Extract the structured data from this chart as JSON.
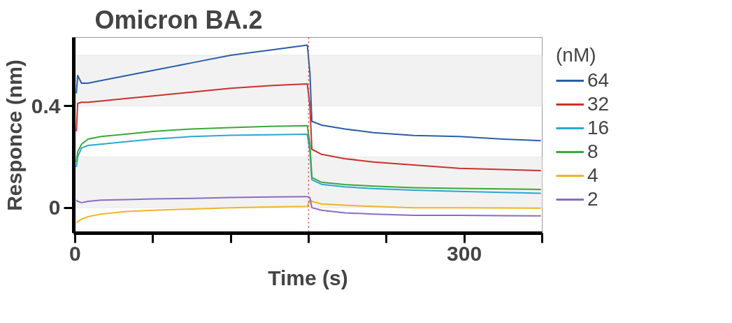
{
  "chart_data": {
    "type": "line",
    "title": "Omicron BA.2",
    "xlabel": "Time (s)",
    "ylabel": "Responce (nm)",
    "legend_title": "(nM)",
    "x": [
      1,
      2,
      5,
      10,
      20,
      40,
      60,
      90,
      120,
      150,
      179,
      181,
      182.5,
      190,
      208,
      230,
      261,
      296,
      330,
      359
    ],
    "series": [
      {
        "name": "64",
        "color": "#2a5ea8",
        "values": [
          0.45,
          0.52,
          0.49,
          0.49,
          0.5,
          0.52,
          0.54,
          0.57,
          0.6,
          0.62,
          0.64,
          0.53,
          0.34,
          0.325,
          0.31,
          0.295,
          0.284,
          0.28,
          0.27,
          0.264
        ]
      },
      {
        "name": "32",
        "color": "#c8322d",
        "values": [
          0.3,
          0.41,
          0.415,
          0.415,
          0.42,
          0.43,
          0.44,
          0.455,
          0.47,
          0.48,
          0.487,
          0.4,
          0.23,
          0.21,
          0.193,
          0.18,
          0.168,
          0.155,
          0.15,
          0.146
        ]
      },
      {
        "name": "16",
        "color": "#27a9d6",
        "values": [
          0.16,
          0.2,
          0.235,
          0.245,
          0.25,
          0.26,
          0.27,
          0.28,
          0.285,
          0.287,
          0.289,
          0.22,
          0.11,
          0.092,
          0.082,
          0.075,
          0.069,
          0.064,
          0.06,
          0.057
        ]
      },
      {
        "name": "8",
        "color": "#3aa83a",
        "values": [
          0.18,
          0.22,
          0.25,
          0.27,
          0.28,
          0.29,
          0.3,
          0.31,
          0.315,
          0.32,
          0.323,
          0.25,
          0.119,
          0.1,
          0.091,
          0.085,
          0.079,
          0.076,
          0.074,
          0.072
        ]
      },
      {
        "name": "4",
        "color": "#f0b429",
        "values": [
          -0.06,
          -0.055,
          -0.045,
          -0.035,
          -0.025,
          -0.015,
          -0.01,
          -0.005,
          0,
          0.003,
          0.005,
          0.03,
          0.025,
          0.015,
          0.01,
          0.005,
          0,
          0,
          -0.001,
          -0.002
        ]
      },
      {
        "name": "2",
        "color": "#8a6cc0",
        "values": [
          0.03,
          0.025,
          0.02,
          0.025,
          0.03,
          0.032,
          0.035,
          0.037,
          0.04,
          0.042,
          0.044,
          0.04,
          0,
          -0.01,
          -0.02,
          -0.025,
          -0.03,
          -0.03,
          -0.031,
          -0.032
        ]
      }
    ],
    "xlim": [
      -1,
      360
    ],
    "ylim": [
      -0.1,
      0.67
    ],
    "xticks": [
      0,
      {
        "value": 60,
        "label": null
      },
      {
        "value": 120,
        "label": null
      },
      {
        "value": 180,
        "label": null
      },
      {
        "value": 240,
        "label": null
      },
      300,
      {
        "value": 360,
        "label": null
      }
    ],
    "yticks": [
      0,
      0.4
    ],
    "ref_lines": [
      {
        "axis": "x",
        "value": 180,
        "label": null,
        "color": "#d04040",
        "line_style": "dotted"
      }
    ],
    "bands": [
      {
        "axis": "y",
        "from": 0.4,
        "to": 0.6,
        "label": null,
        "color": "#f2f2f2"
      },
      {
        "axis": "y",
        "from": 0,
        "to": 0.2,
        "label": null,
        "color": "#f2f2f2"
      }
    ],
    "grid": false,
    "legend": "right",
    "marker": "none",
    "line_style": "solid"
  }
}
